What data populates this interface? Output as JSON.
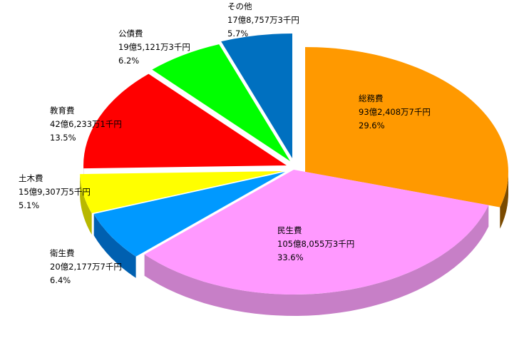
{
  "chart_data": {
    "type": "pie",
    "style": "3d-exploded",
    "slices": [
      {
        "name": "総務費",
        "amount": "93億2,408万7千円",
        "percent_label": "29.6%",
        "percent": 29.6,
        "color": "#FF9900",
        "side_color": "#7A4A00"
      },
      {
        "name": "民生費",
        "amount": "105億8,055万3千円",
        "percent_label": "33.6%",
        "percent": 33.6,
        "color": "#FF99FF",
        "side_color": "#C77FC7"
      },
      {
        "name": "衛生費",
        "amount": "20億2,177万7千円",
        "percent_label": "6.4%",
        "percent": 6.4,
        "color": "#0099FF",
        "side_color": "#0060B0"
      },
      {
        "name": "土木費",
        "amount": "15億9,307万5千円",
        "percent_label": "5.1%",
        "percent": 5.1,
        "color": "#FFFF00",
        "side_color": "#B8B800"
      },
      {
        "name": "教育費",
        "amount": "42億6,233万1千円",
        "percent_label": "13.5%",
        "percent": 13.5,
        "color": "#FF0000",
        "side_color": "#800000"
      },
      {
        "name": "公債費",
        "amount": "19億5,121万3千円",
        "percent_label": "6.2%",
        "percent": 6.2,
        "color": "#00FF00",
        "side_color": "#007700"
      },
      {
        "name": "その他",
        "amount": "17億8,757万3千円",
        "percent_label": "5.7%",
        "percent": 5.7,
        "color": "#0070C0",
        "side_color": "#003F70"
      }
    ]
  }
}
